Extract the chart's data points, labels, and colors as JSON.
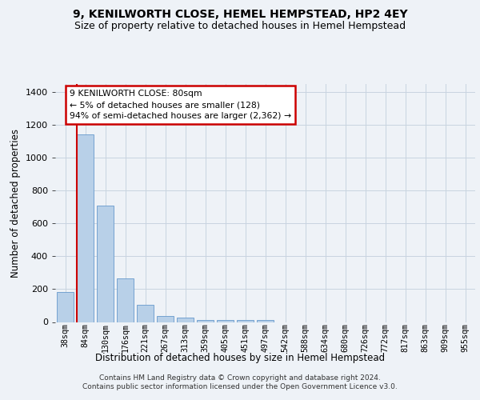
{
  "title": "9, KENILWORTH CLOSE, HEMEL HEMPSTEAD, HP2 4EY",
  "subtitle": "Size of property relative to detached houses in Hemel Hempstead",
  "xlabel": "Distribution of detached houses by size in Hemel Hempstead",
  "ylabel": "Number of detached properties",
  "categories": [
    "38sqm",
    "84sqm",
    "130sqm",
    "176sqm",
    "221sqm",
    "267sqm",
    "313sqm",
    "359sqm",
    "405sqm",
    "451sqm",
    "497sqm",
    "542sqm",
    "588sqm",
    "634sqm",
    "680sqm",
    "726sqm",
    "772sqm",
    "817sqm",
    "863sqm",
    "909sqm",
    "955sqm"
  ],
  "values": [
    185,
    1145,
    710,
    265,
    105,
    35,
    28,
    14,
    14,
    14,
    14,
    0,
    0,
    0,
    0,
    0,
    0,
    0,
    0,
    0,
    0
  ],
  "bar_color": "#b8d0e8",
  "bar_edge_color": "#6699cc",
  "highlight_color": "#cc0000",
  "red_line_x": 0.575,
  "annotation_text": "9 KENILWORTH CLOSE: 80sqm\n← 5% of detached houses are smaller (128)\n94% of semi-detached houses are larger (2,362) →",
  "annotation_box_color": "#ffffff",
  "annotation_box_edge_color": "#cc0000",
  "ylim": [
    0,
    1450
  ],
  "yticks": [
    0,
    200,
    400,
    600,
    800,
    1000,
    1200,
    1400
  ],
  "footer": "Contains HM Land Registry data © Crown copyright and database right 2024.\nContains public sector information licensed under the Open Government Licence v3.0.",
  "bg_color": "#eef2f7",
  "plot_bg_color": "#eef2f7",
  "grid_color": "#c8d4e0",
  "title_fontsize": 10,
  "subtitle_fontsize": 9
}
